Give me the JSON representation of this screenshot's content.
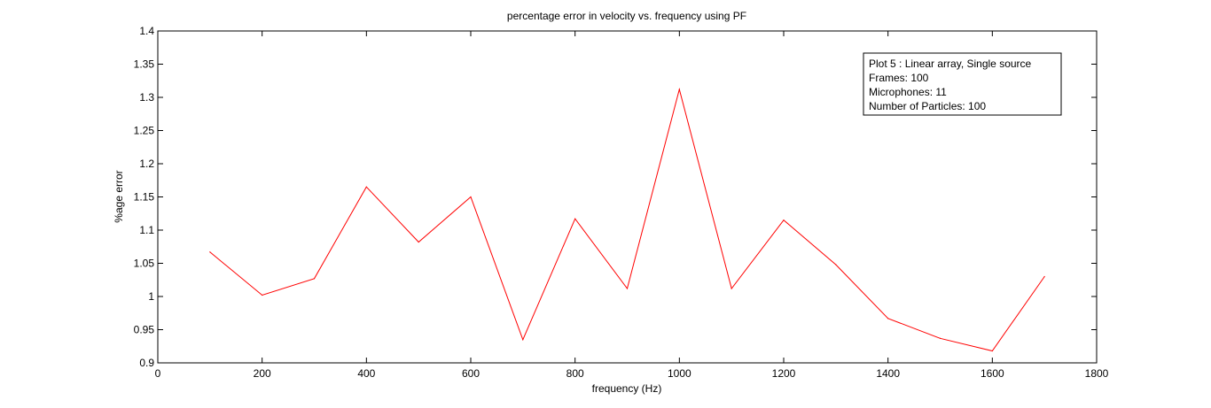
{
  "chart_data": {
    "type": "line",
    "title": "percentage error in velocity vs. frequency using PF",
    "xlabel": "frequency (Hz)",
    "ylabel": "%age error",
    "xlim": [
      0,
      1800
    ],
    "ylim": [
      0.9,
      1.4
    ],
    "xticks": [
      0,
      200,
      400,
      600,
      800,
      1000,
      1200,
      1400,
      1600,
      1800
    ],
    "yticks": [
      0.9,
      0.95,
      1,
      1.05,
      1.1,
      1.15,
      1.2,
      1.25,
      1.3,
      1.35,
      1.4
    ],
    "xtick_labels": [
      "0",
      "200",
      "400",
      "600",
      "800",
      "1000",
      "1200",
      "1400",
      "1600",
      "1800"
    ],
    "ytick_labels": [
      "0.9",
      "0.95",
      "1",
      "1.05",
      "1.1",
      "1.15",
      "1.2",
      "1.25",
      "1.3",
      "1.35",
      "1.4"
    ],
    "grid": false,
    "legend_position": "top-right",
    "series": [
      {
        "color": "#ff0000",
        "x": [
          100,
          200,
          300,
          400,
          500,
          600,
          700,
          800,
          900,
          1000,
          1100,
          1200,
          1300,
          1400,
          1500,
          1600,
          1700
        ],
        "y": [
          1.067,
          1.002,
          1.027,
          1.165,
          1.082,
          1.15,
          0.935,
          1.117,
          1.012,
          1.312,
          1.012,
          1.115,
          1.048,
          0.967,
          0.937,
          0.918,
          1.03
        ]
      }
    ],
    "annotation_lines": [
      "Plot 5 : Linear array, Single source",
      "Frames: 100",
      "Microphones: 11",
      "Number of Particles: 100"
    ]
  }
}
